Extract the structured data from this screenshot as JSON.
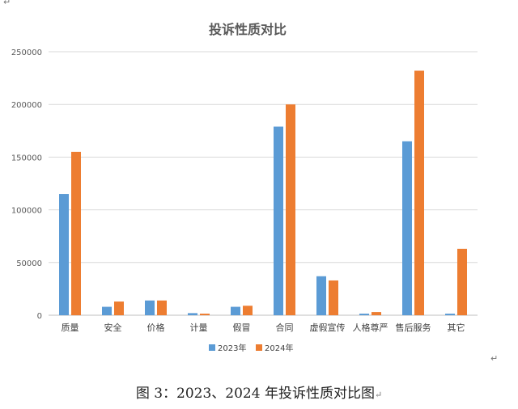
{
  "page": {
    "caption": "图 3：2023、2024 年投诉性质对比图",
    "para_mark": "↵"
  },
  "chart_data": {
    "type": "bar",
    "title": "投诉性质对比",
    "xlabel": "",
    "ylabel": "",
    "categories": [
      "质量",
      "安全",
      "价格",
      "计量",
      "假冒",
      "合同",
      "虚假宣传",
      "人格尊严",
      "售后服务",
      "其它"
    ],
    "series": [
      {
        "name": "2023年",
        "color": "#5B9BD5",
        "values": [
          115000,
          8000,
          14000,
          2000,
          8000,
          179000,
          37000,
          1500,
          165000,
          1500
        ]
      },
      {
        "name": "2024年",
        "color": "#ED7D31",
        "values": [
          155000,
          13000,
          14000,
          1500,
          9000,
          200000,
          33000,
          3000,
          232000,
          63000
        ]
      }
    ],
    "ylim": [
      0,
      250000
    ],
    "yticks": [
      "0",
      "50000",
      "100000",
      "150000",
      "200000",
      "250000"
    ],
    "grid": true,
    "legend_position": "bottom"
  }
}
